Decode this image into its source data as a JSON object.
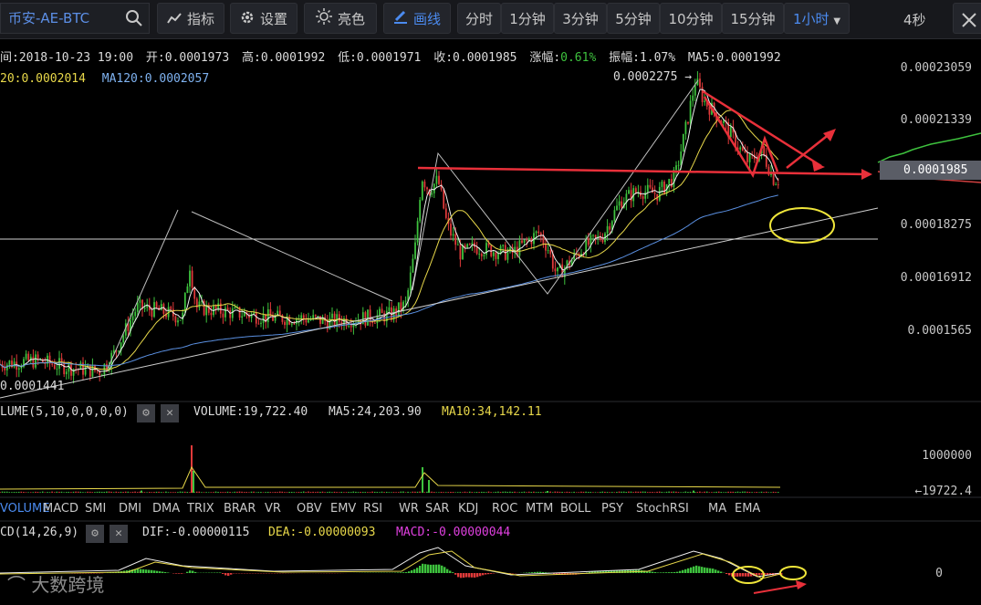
{
  "toolbar": {
    "symbol": "币安-AE-BTC",
    "indicator": "指标",
    "settings": "设置",
    "bright": "亮色",
    "draw": "画线",
    "intervals": [
      "分时",
      "1分钟",
      "3分钟",
      "5分钟",
      "10分钟",
      "15分钟",
      "1小时"
    ],
    "refresh": "4秒"
  },
  "info": {
    "time": "间:2018-10-23 19:00",
    "open": "开:0.0001973",
    "high": "高:0.0001992",
    "low": "低:0.0001971",
    "close": "收:0.0001985",
    "change_label": "涨幅:",
    "change_value": "0.61%",
    "amplitude": "振幅:1.07%",
    "ma5": "MA5:0.0001992",
    "ma20": "20:0.0002014",
    "ma120": "MA120:0.0002057"
  },
  "price_axis": [
    "0.00023059",
    "0.00021339",
    "0.00018275",
    "0.00016912",
    "0.0001565"
  ],
  "price_axis_values": [
    0.00023059,
    0.00021339,
    0.00018275,
    0.00016912,
    0.0001565
  ],
  "current_price": "0.0001985",
  "high_mark": "0.0002275",
  "low_mark": "0.0001441",
  "volume_panel": {
    "params": "LUME(5,10,0,0,0,0)",
    "volume": "VOLUME:19,722.40",
    "ma5": "MA5:24,203.90",
    "ma10": "MA10:34,142.11",
    "axis": "1000000",
    "current": "←19722.4"
  },
  "tabs": [
    "VOLUME",
    "MACD",
    "SMI",
    "DMI",
    "DMA",
    "TRIX",
    "BRAR",
    "VR",
    "OBV",
    "EMV",
    "RSI",
    "WR",
    "SAR",
    "KDJ",
    "ROC",
    "MTM",
    "BOLL",
    "PSY",
    "StochRSI",
    "MA",
    "EMA"
  ],
  "macd_panel": {
    "params": "CD(14,26,9)",
    "dif": "DIF:-0.00000115",
    "dea": "DEA:-0.00000093",
    "macd": "MACD:-0.00000044",
    "axis": "0"
  },
  "watermark": "大数跨境",
  "colors": {
    "up": "#3ec23e",
    "down": "#e03a3a",
    "ma5": "#f0f0f0",
    "ma20": "#e8d84a",
    "ma120": "#5a8fe0",
    "annot": "#e8303a"
  },
  "chart_data": {
    "type": "candlestick",
    "series": [
      {
        "name": "MA5",
        "ma": 5
      },
      {
        "name": "MA20",
        "ma": 20
      },
      {
        "name": "MA120",
        "ma": 120
      }
    ],
    "price_path": [
      [
        0,
        0.000147
      ],
      [
        40,
        0.000148
      ],
      [
        75,
        0.000146
      ],
      [
        110,
        0.000145
      ],
      [
        125,
        0.00015
      ],
      [
        150,
        0.000163
      ],
      [
        175,
        0.000162
      ],
      [
        200,
        0.00016
      ],
      [
        208,
        0.000175
      ],
      [
        215,
        0.000163
      ],
      [
        240,
        0.000162
      ],
      [
        270,
        0.000161
      ],
      [
        300,
        0.00016
      ],
      [
        330,
        0.00016
      ],
      [
        360,
        0.000159
      ],
      [
        400,
        0.00016
      ],
      [
        430,
        0.000161
      ],
      [
        445,
        0.000164
      ],
      [
        455,
        0.00018
      ],
      [
        462,
        0.0002
      ],
      [
        470,
        0.000196
      ],
      [
        480,
        0.000199
      ],
      [
        490,
        0.000186
      ],
      [
        505,
        0.000178
      ],
      [
        520,
        0.00018
      ],
      [
        540,
        0.000179
      ],
      [
        560,
        0.000178
      ],
      [
        575,
        0.000181
      ],
      [
        590,
        0.000184
      ],
      [
        600,
        0.00018
      ],
      [
        610,
        0.000172
      ],
      [
        625,
        0.000176
      ],
      [
        640,
        0.00018
      ],
      [
        660,
        0.000183
      ],
      [
        680,
        0.000193
      ],
      [
        700,
        0.000196
      ],
      [
        720,
        0.000195
      ],
      [
        740,
        0.0002
      ],
      [
        752,
        0.000214
      ],
      [
        762,
        0.000227
      ],
      [
        772,
        0.000221
      ],
      [
        790,
        0.000216
      ],
      [
        805,
        0.00021
      ],
      [
        820,
        0.000204
      ],
      [
        835,
        0.000207
      ],
      [
        848,
        0.000199
      ],
      [
        855,
        0.000199
      ]
    ],
    "volume_spikes": [
      [
        210,
        1300000
      ],
      [
        212,
        600000
      ],
      [
        463,
        700000
      ],
      [
        470,
        350000
      ],
      [
        155,
        60000
      ],
      [
        600,
        50000
      ],
      [
        760,
        60000
      ]
    ]
  }
}
